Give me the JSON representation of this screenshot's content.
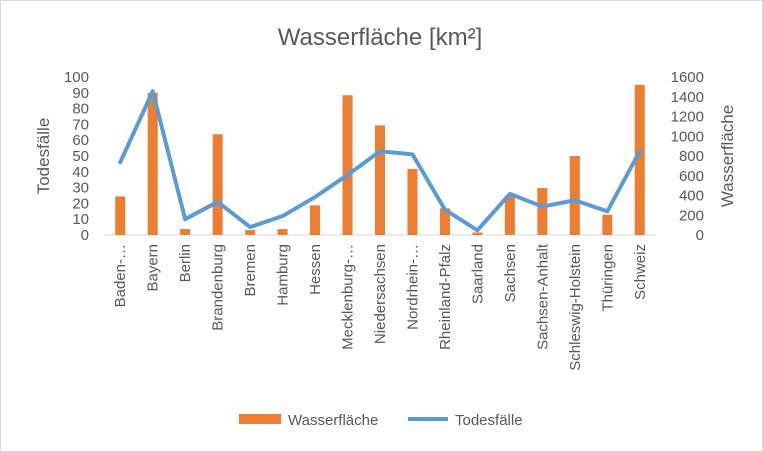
{
  "chart_data": {
    "type": "bar",
    "title": "Wasserfläche [km²]",
    "categories": [
      "Baden-…",
      "Bayern",
      "Berlin",
      "Brandenburg",
      "Bremen",
      "Hamburg",
      "Hessen",
      "Mecklenburg-…",
      "Niedersachsen",
      "Nordrhein-…",
      "Rheinland-Pfalz",
      "Saarland",
      "Sachsen",
      "Sachsen-Anhalt",
      "Schleswig-Holstein",
      "Thüringen",
      "Schweiz"
    ],
    "series": [
      {
        "name": "Wasserfläche",
        "type": "bar",
        "axis": "right",
        "color": "#ed7d31",
        "values": [
          390,
          1440,
          60,
          1020,
          50,
          60,
          300,
          1415,
          1110,
          670,
          270,
          25,
          390,
          475,
          800,
          205,
          1520
        ]
      },
      {
        "name": "Todesfälle",
        "type": "line",
        "axis": "left",
        "color": "#5b9bd5",
        "values": [
          46,
          91,
          10,
          21,
          5,
          12,
          24,
          38,
          53,
          51,
          16,
          3,
          26,
          18,
          22,
          15,
          53
        ]
      }
    ],
    "ylabel": "Todesfälle",
    "y2label": "Wasserfläche",
    "ylim": [
      0,
      100
    ],
    "yticks": [
      0,
      10,
      20,
      30,
      40,
      50,
      60,
      70,
      80,
      90,
      100
    ],
    "y2lim": [
      0,
      1600
    ],
    "y2ticks": [
      0,
      200,
      400,
      600,
      800,
      1000,
      1200,
      1400,
      1600
    ],
    "grid": false,
    "legend": "bottom"
  }
}
